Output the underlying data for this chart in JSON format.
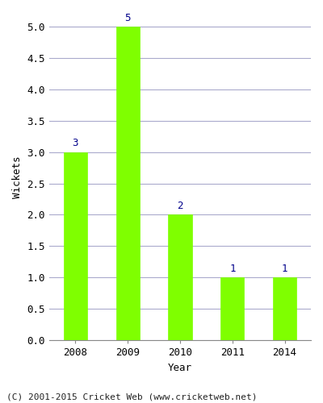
{
  "categories": [
    "2008",
    "2009",
    "2010",
    "2011",
    "2014"
  ],
  "values": [
    3,
    5,
    2,
    1,
    1
  ],
  "bar_color": "#7FFF00",
  "bar_edge_color": "#7FFF00",
  "label_color": "#00008B",
  "xlabel": "Year",
  "ylabel": "Wickets",
  "ylim": [
    0,
    5.2
  ],
  "yticks": [
    0.0,
    0.5,
    1.0,
    1.5,
    2.0,
    2.5,
    3.0,
    3.5,
    4.0,
    4.5,
    5.0
  ],
  "label_fontsize": 9,
  "axis_label_fontsize": 9,
  "tick_fontsize": 9,
  "footer_text": "(C) 2001-2015 Cricket Web (www.cricketweb.net)",
  "footer_fontsize": 8,
  "background_color": "#ffffff",
  "grid_color": "#aaaacc",
  "bar_width": 0.45
}
